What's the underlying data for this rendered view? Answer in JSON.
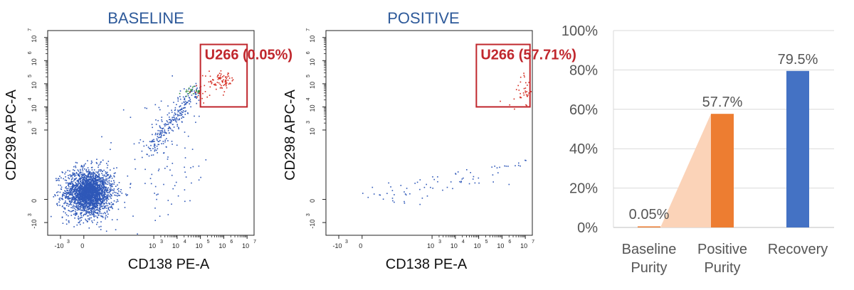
{
  "colors": {
    "title": "#2e5a9a",
    "gate": "#c0272d",
    "gate_text": "#c0272d",
    "event_blue": "#2f58b8",
    "event_red": "#d42a1e",
    "event_green": "#2c8a3a",
    "bar_orange": "#ed7d31",
    "bar_blue": "#4472c4",
    "wedge": "#fbd3b8",
    "axis": "#222222",
    "grid": "#d9d9d9",
    "label_gray": "#555555"
  },
  "chart_data": [
    {
      "type": "scatter",
      "id": "baseline",
      "title": "BASELINE",
      "xlabel": "CD138 PE-A",
      "ylabel": "CD298 APC-A",
      "x_ticks": [
        {
          "base": "-10",
          "exp": "3"
        },
        {
          "base": "0",
          "exp": ""
        },
        {
          "base": "10",
          "exp": "3"
        },
        {
          "base": "10",
          "exp": "4"
        },
        {
          "base": "10",
          "exp": "5"
        },
        {
          "base": "10",
          "exp": "6"
        },
        {
          "base": "10",
          "exp": "7"
        }
      ],
      "y_ticks": [
        {
          "base": "-10",
          "exp": "3"
        },
        {
          "base": "0",
          "exp": ""
        },
        {
          "base": "10",
          "exp": "3"
        },
        {
          "base": "10",
          "exp": "4"
        },
        {
          "base": "10",
          "exp": "5"
        },
        {
          "base": "10",
          "exp": "6"
        },
        {
          "base": "10",
          "exp": "7"
        }
      ],
      "gate": {
        "label": "U266 (0.05%)",
        "x_range": [
          5.0,
          7.0
        ],
        "y_range": [
          4.0,
          6.7
        ]
      },
      "populations": [
        {
          "name": "negative cells",
          "color_key": "event_blue",
          "cx": 0.2,
          "cy": 0.3,
          "sx": 0.55,
          "sy": 0.55,
          "n": 1700
        },
        {
          "name": "negative cells core",
          "color_key": "event_blue",
          "cx": 0.2,
          "cy": 0.35,
          "sx": 0.3,
          "sy": 0.3,
          "n": 900
        },
        {
          "name": "diagonal tail",
          "color_key": "event_blue",
          "from": [
            2.9,
            2.2
          ],
          "to": [
            4.8,
            4.8
          ],
          "spread": 0.2,
          "n": 260
        },
        {
          "name": "scatter",
          "color_key": "event_blue",
          "cx": 3.4,
          "cy": 1.5,
          "sx": 1.0,
          "sy": 1.3,
          "n": 90
        },
        {
          "name": "intermediate",
          "color_key": "event_green",
          "cx": 4.6,
          "cy": 4.7,
          "sx": 0.22,
          "sy": 0.1,
          "n": 22
        },
        {
          "name": "gated U266",
          "color_key": "event_red",
          "cx": 5.9,
          "cy": 5.15,
          "sx": 0.28,
          "sy": 0.18,
          "n": 80
        },
        {
          "name": "gated edge",
          "color_key": "event_red",
          "cx": 5.0,
          "cy": 4.6,
          "sx": 0.3,
          "sy": 0.2,
          "n": 14
        }
      ]
    },
    {
      "type": "scatter",
      "id": "positive",
      "title": "POSITIVE",
      "xlabel": "CD138 PE-A",
      "ylabel": "CD298 APC-A",
      "x_ticks": [
        {
          "base": "-10",
          "exp": "3"
        },
        {
          "base": "0",
          "exp": ""
        },
        {
          "base": "10",
          "exp": "3"
        },
        {
          "base": "10",
          "exp": "4"
        },
        {
          "base": "10",
          "exp": "5"
        },
        {
          "base": "10",
          "exp": "6"
        },
        {
          "base": "10",
          "exp": "7"
        }
      ],
      "y_ticks": [
        {
          "base": "-10",
          "exp": "3"
        },
        {
          "base": "0",
          "exp": ""
        },
        {
          "base": "10",
          "exp": "3"
        },
        {
          "base": "10",
          "exp": "4"
        },
        {
          "base": "10",
          "exp": "5"
        },
        {
          "base": "10",
          "exp": "6"
        },
        {
          "base": "10",
          "exp": "7"
        }
      ],
      "gate": {
        "label": "U266 (57.71%)",
        "x_range": [
          4.9,
          7.2
        ],
        "y_range": [
          4.0,
          6.7
        ]
      },
      "populations": [
        {
          "name": "low events",
          "color_key": "event_blue",
          "from": [
            0.2,
            0.0
          ],
          "to": [
            6.9,
            1.5
          ],
          "spread": 0.25,
          "n": 75
        },
        {
          "name": "gated U266",
          "color_key": "event_red",
          "cx": 6.95,
          "cy": 4.8,
          "sx": 0.18,
          "sy": 0.3,
          "n": 30
        },
        {
          "name": "gated sparse",
          "color_key": "event_red",
          "cx": 6.3,
          "cy": 4.5,
          "sx": 0.5,
          "sy": 0.3,
          "n": 8
        }
      ]
    },
    {
      "type": "bar",
      "id": "purity",
      "categories": [
        [
          "Baseline",
          "Purity"
        ],
        [
          "Positive",
          "Purity"
        ],
        [
          "Recovery"
        ]
      ],
      "values": [
        0.05,
        57.7,
        79.5
      ],
      "value_labels": [
        "0.05%",
        "57.7%",
        "79.5%"
      ],
      "color_keys": [
        "bar_orange",
        "bar_orange",
        "bar_blue"
      ],
      "ylim": [
        0,
        100
      ],
      "yticks": [
        "0%",
        "20%",
        "40%",
        "60%",
        "80%",
        "100%"
      ],
      "grid": true
    }
  ]
}
